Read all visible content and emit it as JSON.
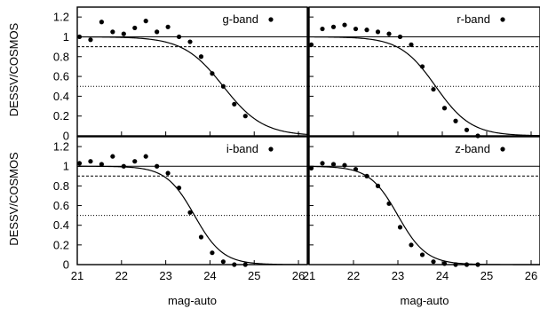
{
  "chart_data": [
    {
      "type": "scatter",
      "title": "",
      "legend": "g-band",
      "xlabel": "",
      "ylabel": "DESSV/COSMOS",
      "xlim": [
        21,
        26.2
      ],
      "ylim": [
        0,
        1.3
      ],
      "xticks": [],
      "yticks": [
        "0",
        "0.2",
        "0.4",
        "0.6",
        "0.8",
        "1",
        "1.2"
      ],
      "reference_lines": [
        {
          "y": 1.0,
          "style": "solid"
        },
        {
          "y": 0.9,
          "style": "dashed"
        },
        {
          "y": 0.5,
          "style": "dotted"
        }
      ],
      "fit_curve": {
        "type": "completeness",
        "m50": 24.3,
        "width": 0.45
      },
      "series": [
        {
          "x": [
            21.05,
            21.3,
            21.55,
            21.8,
            22.05,
            22.3,
            22.55,
            22.8,
            23.05,
            23.3,
            23.55,
            23.8,
            24.05,
            24.3,
            24.55,
            24.8
          ],
          "y": [
            1.0,
            0.97,
            1.15,
            1.05,
            1.03,
            1.09,
            1.16,
            1.05,
            1.1,
            1.0,
            0.95,
            0.8,
            0.63,
            0.5,
            0.32,
            0.2
          ]
        }
      ]
    },
    {
      "type": "scatter",
      "title": "",
      "legend": "r-band",
      "xlabel": "",
      "ylabel": "",
      "xlim": [
        21,
        26.2
      ],
      "ylim": [
        0,
        1.3
      ],
      "xticks": [],
      "yticks": [],
      "reference_lines": [
        {
          "y": 1.0,
          "style": "solid"
        },
        {
          "y": 0.9,
          "style": "dashed"
        },
        {
          "y": 0.5,
          "style": "dotted"
        }
      ],
      "fit_curve": {
        "type": "completeness",
        "m50": 23.85,
        "width": 0.4
      },
      "series": [
        {
          "x": [
            21.05,
            21.3,
            21.55,
            21.8,
            22.05,
            22.3,
            22.55,
            22.8,
            23.05,
            23.3,
            23.55,
            23.8,
            24.05,
            24.3,
            24.55,
            24.8
          ],
          "y": [
            0.92,
            1.08,
            1.1,
            1.12,
            1.08,
            1.07,
            1.05,
            1.03,
            1.0,
            0.92,
            0.7,
            0.47,
            0.28,
            0.15,
            0.06,
            0.0
          ]
        }
      ]
    },
    {
      "type": "scatter",
      "title": "",
      "legend": "i-band",
      "xlabel": "mag-auto",
      "ylabel": "DESSV/COSMOS",
      "xlim": [
        21,
        26.2
      ],
      "ylim": [
        0,
        1.3
      ],
      "xticks": [
        "21",
        "22",
        "23",
        "24",
        "25",
        "26"
      ],
      "yticks": [
        "0",
        "0.2",
        "0.4",
        "0.6",
        "0.8",
        "1",
        "1.2"
      ],
      "reference_lines": [
        {
          "y": 1.0,
          "style": "solid"
        },
        {
          "y": 0.9,
          "style": "dashed"
        },
        {
          "y": 0.5,
          "style": "dotted"
        }
      ],
      "fit_curve": {
        "type": "completeness",
        "m50": 23.65,
        "width": 0.32
      },
      "series": [
        {
          "x": [
            21.05,
            21.3,
            21.55,
            21.8,
            22.05,
            22.3,
            22.55,
            22.8,
            23.05,
            23.3,
            23.55,
            23.8,
            24.05,
            24.3,
            24.55,
            24.8
          ],
          "y": [
            1.03,
            1.05,
            1.02,
            1.1,
            1.0,
            1.05,
            1.1,
            1.0,
            0.93,
            0.78,
            0.53,
            0.28,
            0.12,
            0.03,
            0.0,
            0.0
          ]
        }
      ]
    },
    {
      "type": "scatter",
      "title": "",
      "legend": "z-band",
      "xlabel": "mag-auto",
      "ylabel": "",
      "xlim": [
        21,
        26.2
      ],
      "ylim": [
        0,
        1.3
      ],
      "xticks": [
        "21",
        "22",
        "23",
        "24",
        "25",
        "26"
      ],
      "yticks": [],
      "reference_lines": [
        {
          "y": 1.0,
          "style": "solid"
        },
        {
          "y": 0.9,
          "style": "dashed"
        },
        {
          "y": 0.5,
          "style": "dotted"
        }
      ],
      "fit_curve": {
        "type": "completeness",
        "m50": 23.0,
        "width": 0.32
      },
      "series": [
        {
          "x": [
            21.05,
            21.3,
            21.55,
            21.8,
            22.05,
            22.3,
            22.55,
            22.8,
            23.05,
            23.3,
            23.55,
            23.8,
            24.05,
            24.3,
            24.55,
            24.8
          ],
          "y": [
            0.98,
            1.03,
            1.02,
            1.01,
            0.97,
            0.9,
            0.8,
            0.62,
            0.38,
            0.2,
            0.1,
            0.03,
            0.01,
            0.0,
            0.0,
            0.0
          ]
        }
      ]
    }
  ]
}
